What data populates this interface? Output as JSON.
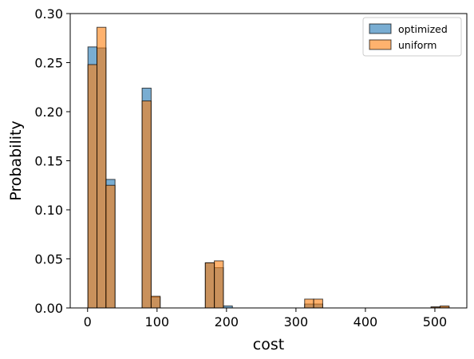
{
  "chart_data": {
    "type": "histogram",
    "title": "",
    "xlabel": "cost",
    "ylabel": "Probability",
    "xlim": [
      -25,
      546
    ],
    "ylim": [
      0,
      0.3
    ],
    "xticks": [
      0,
      100,
      200,
      300,
      400,
      500
    ],
    "yticks": [
      0.0,
      0.05,
      0.1,
      0.15,
      0.2,
      0.25,
      0.3
    ],
    "xtick_labels": [
      "0",
      "100",
      "200",
      "300",
      "400",
      "500"
    ],
    "ytick_labels": [
      "0.00",
      "0.05",
      "0.10",
      "0.15",
      "0.20",
      "0.25",
      "0.30"
    ],
    "bin_edges": [
      0.5,
      13.5,
      26.5,
      39.5,
      52.5,
      65.5,
      78.5,
      91.5,
      104.5,
      117.5,
      130.5,
      143.5,
      156.5,
      169.5,
      182.5,
      195.5,
      208.5,
      221.5,
      234.5,
      247.5,
      260.5,
      273.5,
      286.5,
      299.5,
      312.5,
      325.5,
      338.5,
      351.5,
      364.5,
      377.5,
      390.5,
      403.5,
      416.5,
      429.5,
      442.5,
      455.5,
      468.5,
      481.5,
      494.5,
      507.5,
      520.5
    ],
    "legend_position": "top-right",
    "grid": false,
    "series": [
      {
        "name": "optimized",
        "color": "#1f77b4",
        "alpha": 0.6,
        "values": [
          0.266,
          0.265,
          0.131,
          0,
          0,
          0,
          0.224,
          0.011,
          0,
          0,
          0,
          0,
          0,
          0.046,
          0.041,
          0.002,
          0,
          0,
          0,
          0,
          0,
          0,
          0,
          0,
          0.004,
          0.004,
          0,
          0,
          0,
          0,
          0,
          0,
          0,
          0,
          0,
          0,
          0,
          0,
          0.001,
          0.001
        ]
      },
      {
        "name": "uniform",
        "color": "#ff7f0e",
        "alpha": 0.6,
        "values": [
          0.248,
          0.286,
          0.125,
          0,
          0,
          0,
          0.211,
          0.012,
          0,
          0,
          0,
          0,
          0,
          0.046,
          0.048,
          0,
          0,
          0,
          0,
          0,
          0,
          0,
          0,
          0,
          0.009,
          0.009,
          0,
          0,
          0,
          0,
          0,
          0,
          0,
          0,
          0,
          0,
          0,
          0,
          0.001,
          0.002
        ]
      }
    ]
  }
}
